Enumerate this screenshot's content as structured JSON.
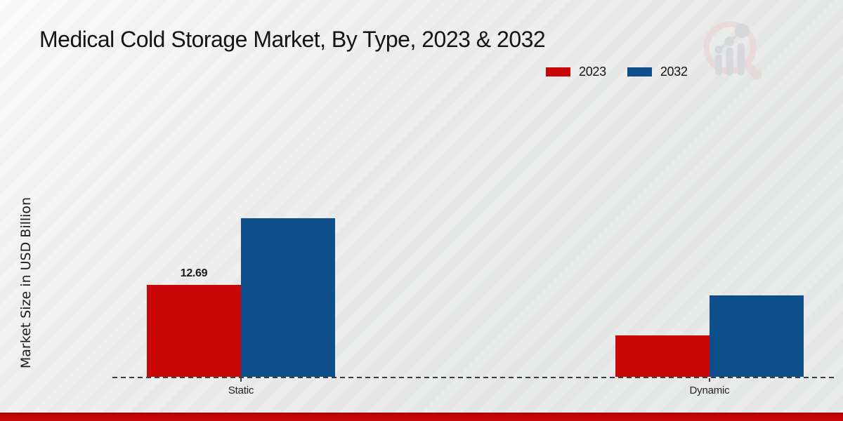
{
  "title": "Medical Cold Storage Market, By Type, 2023 & 2032",
  "y_axis_label": "Market Size in USD Billion",
  "legend": {
    "items": [
      {
        "label": "2023",
        "color": "#c90707"
      },
      {
        "label": "2032",
        "color": "#0e4e8b"
      }
    ]
  },
  "watermark": {
    "icon_name": "magnifier-bar-chart-logo",
    "ring_color": "#eacfd2",
    "bars_color": "#c9ccd2"
  },
  "footer": {
    "bar_color": "#c40606"
  },
  "chart_data": {
    "type": "bar",
    "categories": [
      "Static",
      "Dynamic"
    ],
    "series": [
      {
        "name": "2023",
        "color": "#c90707",
        "values": [
          12.69,
          5.7
        ]
      },
      {
        "name": "2032",
        "color": "#0e4e8b",
        "values": [
          21.9,
          11.2
        ]
      }
    ],
    "bar_labels": [
      {
        "series_index": 0,
        "category_index": 0,
        "text": "12.69"
      }
    ],
    "title": "Medical Cold Storage Market, By Type, 2023 & 2032",
    "xlabel": "",
    "ylabel": "Market Size in USD Billion",
    "ylim": [
      0,
      25
    ],
    "grid": false,
    "baseline_style": "dashed",
    "legend_position": "top-right"
  }
}
